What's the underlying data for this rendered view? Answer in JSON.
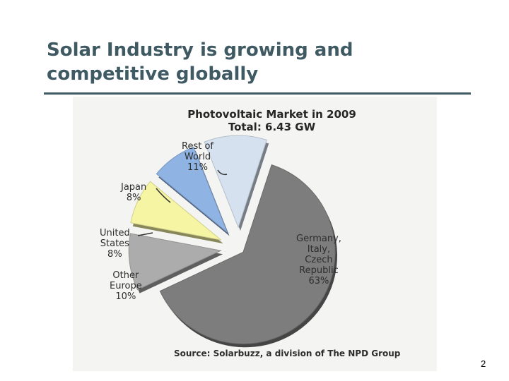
{
  "slide": {
    "title_line1": "Solar Industry is growing and",
    "title_line2": "competitive globally",
    "page_number": "2",
    "title_color": "#3f5a63"
  },
  "chart_data": {
    "type": "pie",
    "title": "Photovoltaic Market in 2009",
    "subtitle": "Total: 6.43 GW",
    "source": "Source: Solarbuzz, a division of The NPD Group",
    "exploded": true,
    "slices": [
      {
        "label_lines": [
          "Germany,",
          "Italy,",
          "Czech",
          "Republic"
        ],
        "value": 63,
        "percent_label": "63%",
        "color": "#7d7d7d"
      },
      {
        "label_lines": [
          "Other",
          "Europe"
        ],
        "value": 10,
        "percent_label": "10%",
        "color": "#acacac"
      },
      {
        "label_lines": [
          "United",
          "States"
        ],
        "value": 8,
        "percent_label": "8%",
        "color": "#f6f5a4"
      },
      {
        "label_lines": [
          "Japan"
        ],
        "value": 8,
        "percent_label": "8%",
        "color": "#8fb3e3"
      },
      {
        "label_lines": [
          "Rest of",
          "World"
        ],
        "value": 11,
        "percent_label": "11%",
        "color": "#d5e1ee"
      }
    ]
  }
}
